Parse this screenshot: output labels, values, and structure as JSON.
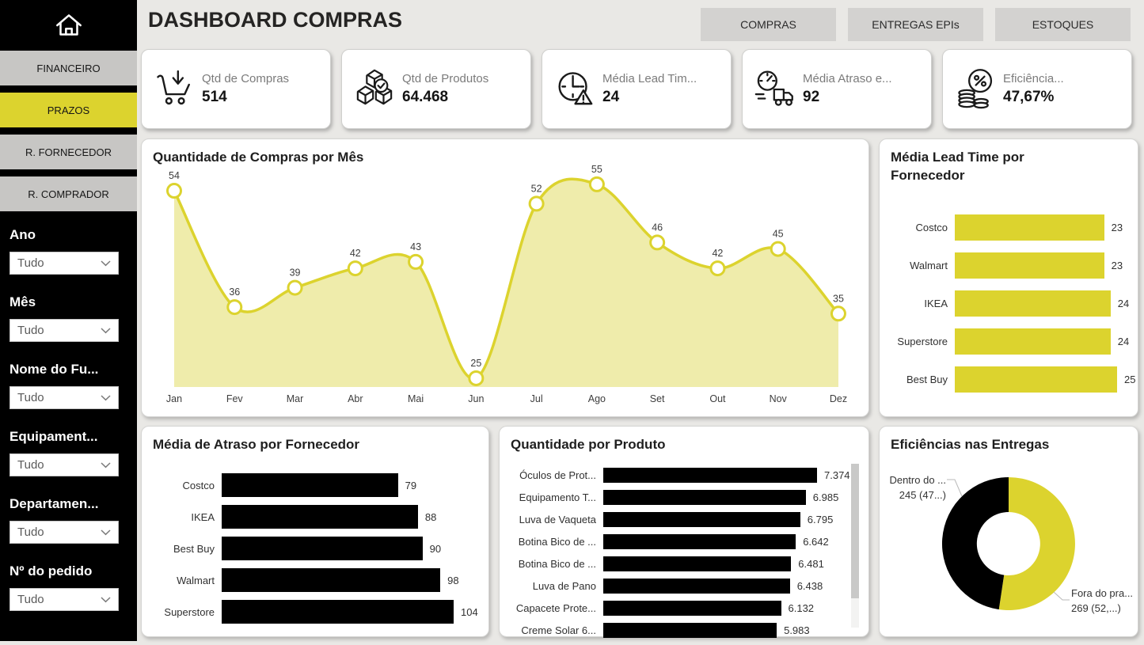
{
  "app": {
    "title": "DASHBOARD COMPRAS"
  },
  "header": {
    "tabs": [
      "COMPRAS",
      "ENTREGAS EPIs",
      "ESTOQUES"
    ]
  },
  "sidebar": {
    "nav": [
      {
        "label": "FINANCEIRO",
        "active": false
      },
      {
        "label": "PRAZOS",
        "active": true
      },
      {
        "label": "R. FORNECEDOR",
        "active": false
      },
      {
        "label": "R. COMPRADOR",
        "active": false
      }
    ],
    "filters": [
      {
        "label": "Ano",
        "value": "Tudo"
      },
      {
        "label": "Mês",
        "value": "Tudo"
      },
      {
        "label": "Nome do Fu...",
        "value": "Tudo"
      },
      {
        "label": "Equipament...",
        "value": "Tudo"
      },
      {
        "label": "Departamen...",
        "value": "Tudo"
      },
      {
        "label": "Nº do pedido",
        "value": "Tudo"
      }
    ]
  },
  "kpis": [
    {
      "icon": "cart-download-icon",
      "label": "Qtd de Compras",
      "value": "514"
    },
    {
      "icon": "boxes-check-icon",
      "label": "Qtd de Produtos",
      "value": "64.468"
    },
    {
      "icon": "clock-alert-icon",
      "label": "Média Lead Tim...",
      "value": "24"
    },
    {
      "icon": "truck-speed-icon",
      "label": "Média Atraso e...",
      "value": "92"
    },
    {
      "icon": "coins-percent-icon",
      "label": "Eficiência...",
      "value": "47,67%"
    }
  ],
  "colors": {
    "accent": "#dcd32e",
    "accent_fill": "#efecab",
    "black": "#000000"
  },
  "chart_data": [
    {
      "type": "line",
      "title": "Quantidade de Compras por Mês",
      "x": [
        "Jan",
        "Fev",
        "Mar",
        "Abr",
        "Mai",
        "Jun",
        "Jul",
        "Ago",
        "Set",
        "Out",
        "Nov",
        "Dez"
      ],
      "values": [
        54,
        36,
        39,
        42,
        43,
        25,
        52,
        55,
        46,
        42,
        45,
        35
      ],
      "ylim": [
        23,
        56
      ],
      "line_color": "#dcd32e",
      "fill_color": "#efecab",
      "grid": false,
      "legend": "none"
    },
    {
      "type": "bar",
      "orientation": "horizontal",
      "title": "Média Lead Time por Fornecedor",
      "categories": [
        "Costco",
        "Walmart",
        "IKEA",
        "Superstore",
        "Best Buy"
      ],
      "values": [
        23,
        23,
        24,
        24,
        25
      ],
      "bar_color": "#dcd32e"
    },
    {
      "type": "bar",
      "orientation": "horizontal",
      "title": "Média de Atraso por Fornecedor",
      "categories": [
        "Costco",
        "IKEA",
        "Best Buy",
        "Walmart",
        "Superstore"
      ],
      "values": [
        79,
        88,
        90,
        98,
        104
      ],
      "bar_color": "#000000"
    },
    {
      "type": "bar",
      "orientation": "horizontal",
      "title": "Quantidade por Produto",
      "categories": [
        "Óculos de Prot...",
        "Equipamento T...",
        "Luva de Vaqueta",
        "Botina Bico de ...",
        "Botina Bico de ...",
        "Luva de Pano",
        "Capacete Prote...",
        "Creme Solar 6..."
      ],
      "values": [
        7374,
        6985,
        6795,
        6642,
        6481,
        6438,
        6132,
        5983
      ],
      "value_labels": [
        "7.374",
        "6.985",
        "6.795",
        "6.642",
        "6.481",
        "6.438",
        "6.132",
        "5.983"
      ],
      "bar_color": "#000000",
      "scrollbar": true
    },
    {
      "type": "pie",
      "donut": true,
      "title": "Eficiências nas Entregas",
      "slices": [
        {
          "label": "Dentro do ...",
          "sublabel": "245 (47...)",
          "value": 245,
          "color": "#000000"
        },
        {
          "label": "Fora do pra...",
          "sublabel": "269 (52,...)",
          "value": 269,
          "color": "#dcd32e"
        }
      ]
    }
  ]
}
